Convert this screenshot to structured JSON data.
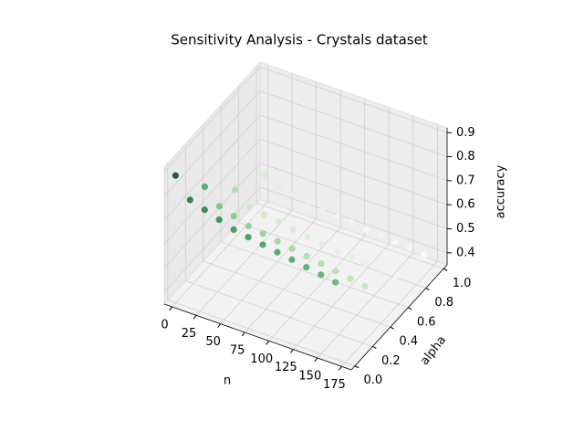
{
  "chart_data": {
    "type": "scatter3d",
    "title": "Sensitivity Analysis - Crystals dataset",
    "xlabel": "n",
    "ylabel": "alpha",
    "zlabel": "accuracy",
    "cmap": "Greens",
    "x": [
      0,
      15,
      30,
      45,
      60,
      75,
      90,
      105,
      120,
      135,
      150,
      165,
      0,
      15,
      30,
      45,
      60,
      75,
      90,
      105,
      120,
      135,
      150,
      165,
      0,
      15,
      30,
      45,
      60,
      75,
      90,
      105,
      120,
      135,
      150,
      165,
      0,
      15,
      30,
      45,
      60,
      75,
      90,
      105,
      120,
      135,
      150,
      165
    ],
    "y": [
      0,
      0,
      0,
      0,
      0,
      0,
      0,
      0,
      0,
      0,
      0,
      0,
      0.33,
      0.33,
      0.33,
      0.33,
      0.33,
      0.33,
      0.33,
      0.33,
      0.33,
      0.33,
      0.33,
      0.33,
      0.67,
      0.67,
      0.67,
      0.67,
      0.67,
      0.67,
      0.67,
      0.67,
      0.67,
      0.67,
      0.67,
      0.67,
      1.0,
      1.0,
      1.0,
      1.0,
      1.0,
      1.0,
      1.0,
      1.0,
      1.0,
      1.0,
      1.0,
      1.0
    ],
    "z": [
      0.88,
      0.8,
      0.78,
      0.76,
      0.74,
      0.73,
      0.72,
      0.71,
      0.7,
      0.69,
      0.68,
      0.67,
      0.7,
      0.64,
      0.62,
      0.6,
      0.59,
      0.58,
      0.57,
      0.56,
      0.55,
      0.54,
      0.53,
      0.52,
      0.55,
      0.5,
      0.49,
      0.48,
      0.47,
      0.46,
      0.45,
      0.44,
      0.44,
      0.43,
      0.42,
      0.41,
      0.48,
      0.45,
      0.44,
      0.43,
      0.42,
      0.41,
      0.41,
      0.4,
      0.4,
      0.39,
      0.39,
      0.38
    ],
    "xlim": [
      -8,
      185
    ],
    "ylim": [
      -0.04,
      1.04
    ],
    "zlim": [
      0.35,
      0.92
    ],
    "xticks": [
      0,
      25,
      50,
      75,
      100,
      125,
      150,
      175
    ],
    "yticks": [
      {
        "value": 0,
        "label": "0.0"
      },
      0.2,
      0.4,
      0.6,
      0.8,
      {
        "value": 1,
        "label": "1.0"
      }
    ],
    "zticks": [
      0.4,
      0.5,
      0.6,
      0.7,
      0.8,
      0.9
    ],
    "grid": true
  }
}
